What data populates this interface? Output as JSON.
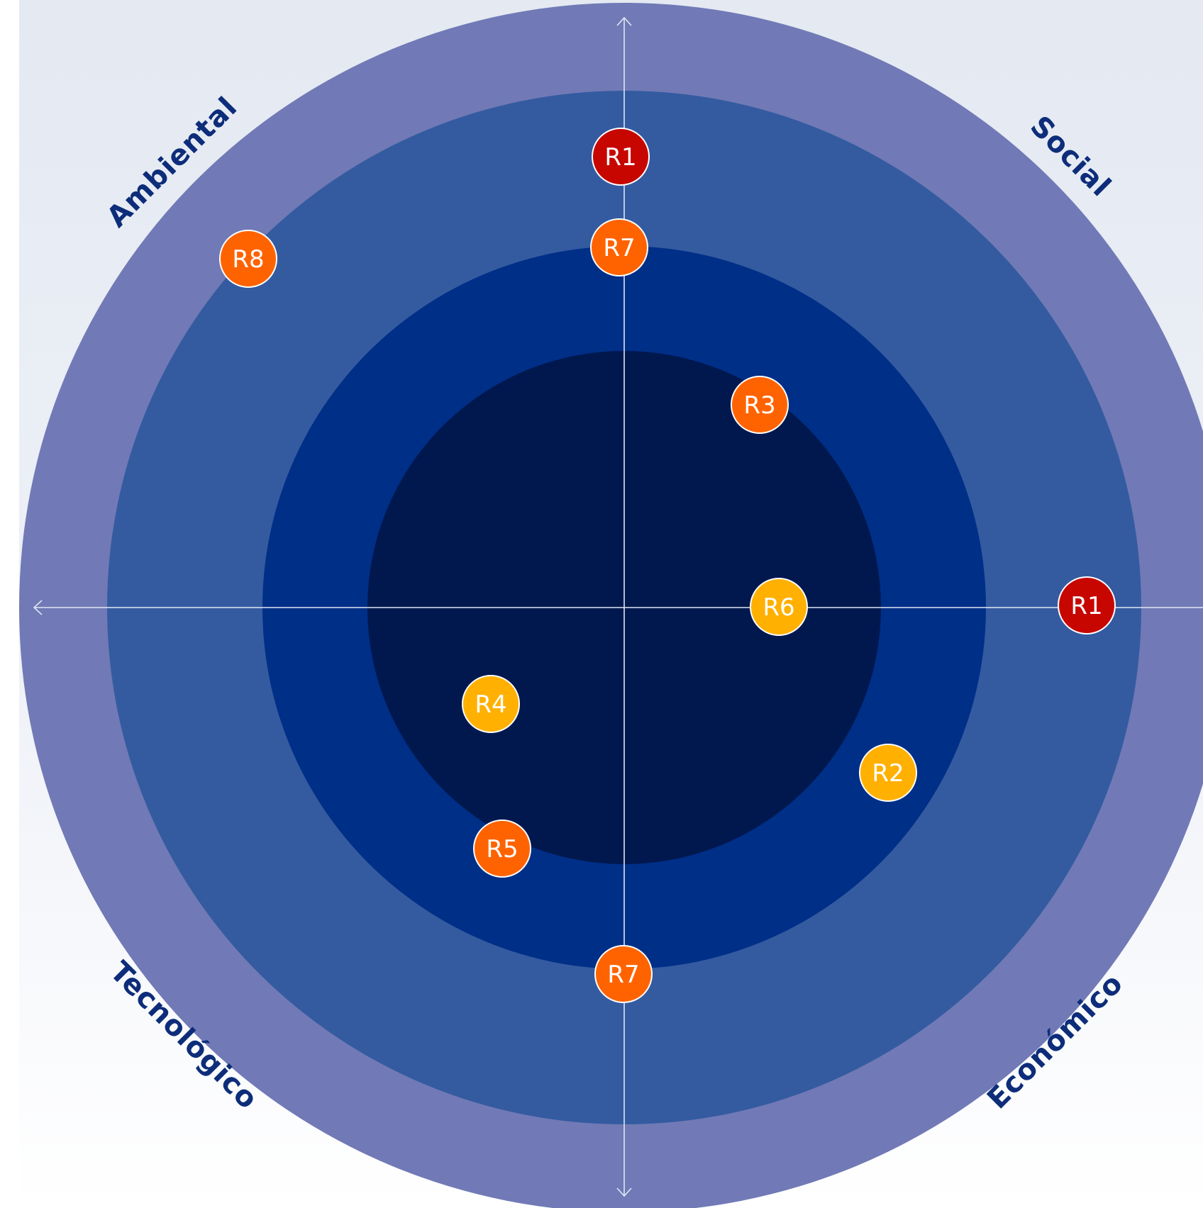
{
  "quadrants": {
    "top_left": "Ambiental",
    "top_right": "Social",
    "bottom_left": "Tecnológico",
    "bottom_right": "Económico"
  },
  "colors": {
    "background_top": "#e4e9f2",
    "background_bottom": "#ffffff",
    "ring_outer": "#717ab6",
    "ring_2": "#345ba0",
    "ring_3": "#002f87",
    "ring_inner": "#01184f",
    "axis": "#dfe6f3",
    "label": "#0d2d7a",
    "risk_high": "#c70600",
    "risk_medium": "#ff6300",
    "risk_low": "#ffb000"
  },
  "risks": [
    {
      "id": "r1-top",
      "label": "R1",
      "level": "high"
    },
    {
      "id": "r7-top",
      "label": "R7",
      "level": "medium"
    },
    {
      "id": "r8",
      "label": "R8",
      "level": "medium"
    },
    {
      "id": "r3",
      "label": "R3",
      "level": "medium"
    },
    {
      "id": "r6",
      "label": "R6",
      "level": "low"
    },
    {
      "id": "r1-right",
      "label": "R1",
      "level": "high"
    },
    {
      "id": "r4",
      "label": "R4",
      "level": "low"
    },
    {
      "id": "r2",
      "label": "R2",
      "level": "low"
    },
    {
      "id": "r5",
      "label": "R5",
      "level": "medium"
    },
    {
      "id": "r7-bottom",
      "label": "R7",
      "level": "medium"
    }
  ]
}
